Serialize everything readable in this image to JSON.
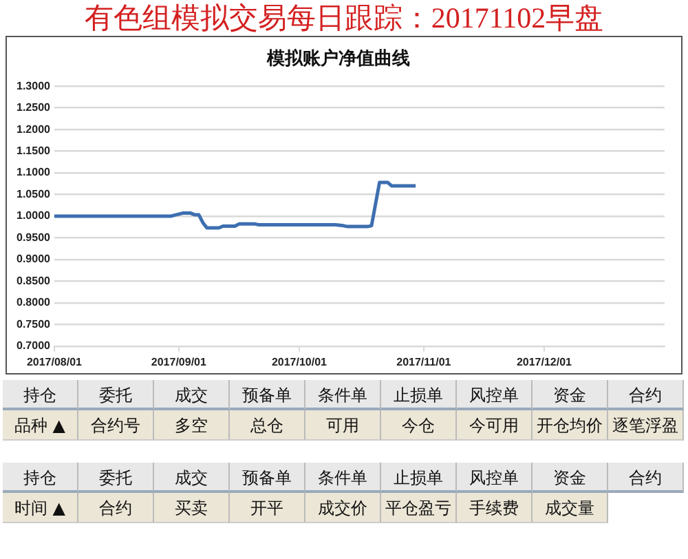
{
  "chart_data": [
    {
      "type": "line",
      "title": "有色组模拟交易每日跟踪：20171102早盘",
      "subtitle": "模拟账户净值曲线",
      "series": [
        {
          "color": "#3d6fb0",
          "x": [
            "2017-08-01",
            "2017-08-30",
            "2017-09-02",
            "2017-09-04",
            "2017-09-05",
            "2017-09-06",
            "2017-09-07",
            "2017-09-08",
            "2017-09-11",
            "2017-09-12",
            "2017-09-15",
            "2017-09-16",
            "2017-09-20",
            "2017-09-21",
            "2017-10-10",
            "2017-10-12",
            "2017-10-13",
            "2017-10-18",
            "2017-10-19",
            "2017-10-21",
            "2017-10-23",
            "2017-10-24",
            "2017-10-30"
          ],
          "values": [
            1.0,
            1.0,
            1.007,
            1.007,
            1.003,
            1.003,
            0.985,
            0.973,
            0.973,
            0.977,
            0.977,
            0.982,
            0.982,
            0.98,
            0.98,
            0.978,
            0.976,
            0.976,
            0.978,
            1.078,
            1.078,
            1.07,
            1.07
          ]
        }
      ],
      "xlim": [
        "2017-08-01",
        "2017-12-31"
      ],
      "xticks": [
        {
          "value": "2017-08-01",
          "label": "2017/08/01"
        },
        {
          "value": "2017-09-01",
          "label": "2017/09/01"
        },
        {
          "value": "2017-10-01",
          "label": "2017/10/01"
        },
        {
          "value": "2017-11-01",
          "label": "2017/11/01"
        },
        {
          "value": "2017-12-01",
          "label": "2017/12/01"
        }
      ],
      "ylim": [
        0.7,
        1.3
      ],
      "yticks": [
        {
          "value": 0.7,
          "label": "0.7000"
        },
        {
          "value": 0.75,
          "label": "0.7500"
        },
        {
          "value": 0.8,
          "label": "0.8000"
        },
        {
          "value": 0.85,
          "label": "0.8500"
        },
        {
          "value": 0.9,
          "label": "0.9000"
        },
        {
          "value": 0.95,
          "label": "0.9500"
        },
        {
          "value": 1.0,
          "label": "1.0000"
        },
        {
          "value": 1.05,
          "label": "1.0500"
        },
        {
          "value": 1.1,
          "label": "1.1000"
        },
        {
          "value": 1.15,
          "label": "1.1500"
        },
        {
          "value": 1.2,
          "label": "1.2000"
        },
        {
          "value": 1.25,
          "label": "1.2500"
        },
        {
          "value": 1.3,
          "label": "1.3000"
        }
      ],
      "grid": "y",
      "line_style": "solid"
    },
    {
      "type": "other",
      "annotations": [
        "持仓",
        "委托",
        "成交",
        "预备单",
        "条件单",
        "止损单",
        "风控单",
        "资金",
        "合约",
        "品种 ▲",
        "合约号",
        "多空",
        "总仓",
        "可用",
        "今仓",
        "今可用",
        "开仓均价",
        "逐笔浮盈",
        "持仓",
        "委托",
        "成交",
        "预备单",
        "条件单",
        "止损单",
        "风控单",
        "资金",
        "合约",
        "时间 ▲",
        "合约",
        "买卖",
        "开平",
        "成交价",
        "平仓盈亏",
        "手续费",
        "成交量"
      ]
    }
  ]
}
